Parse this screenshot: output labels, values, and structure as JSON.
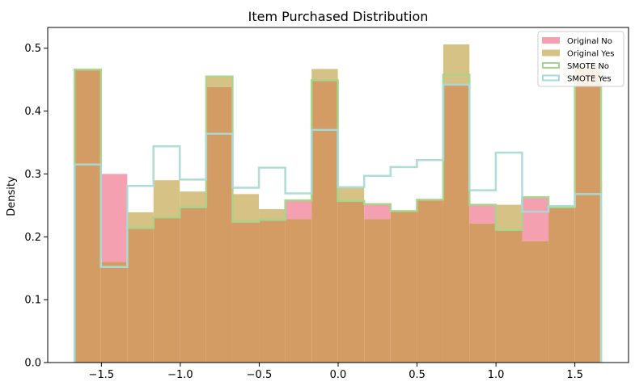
{
  "chart_data": {
    "type": "histogram",
    "title": "Item Purchased Distribution",
    "xlabel": "",
    "ylabel": "Density",
    "xlim": [
      -1.84,
      1.84
    ],
    "ylim": [
      0,
      0.533
    ],
    "grid": false,
    "legend_placement": "top-right",
    "x_ticks": [
      -1.5,
      -1.0,
      -0.5,
      0.0,
      0.5,
      1.0,
      1.5
    ],
    "x_tick_labels": [
      "−1.5",
      "−1.0",
      "−0.5",
      "0.0",
      "0.5",
      "1.0",
      "1.5"
    ],
    "y_ticks": [
      0.0,
      0.1,
      0.2,
      0.3,
      0.4,
      0.5
    ],
    "y_tick_labels": [
      "0.0",
      "0.1",
      "0.2",
      "0.3",
      "0.4",
      "0.5"
    ],
    "bin_edges": [
      -1.67,
      -1.503,
      -1.336,
      -1.17,
      -1.003,
      -0.836,
      -0.669,
      -0.502,
      -0.335,
      -0.168,
      -0.002,
      0.165,
      0.332,
      0.499,
      0.666,
      0.832,
      0.999,
      1.166,
      1.333,
      1.5,
      1.666
    ],
    "series": [
      {
        "name": "Original No",
        "style": "filled",
        "color": "#f4a0b0",
        "values": [
          0.466,
          0.3,
          0.214,
          0.231,
          0.247,
          0.438,
          0.224,
          0.227,
          0.258,
          0.449,
          0.257,
          0.252,
          0.241,
          0.259,
          0.442,
          0.251,
          0.211,
          0.263,
          0.247,
          0.47
        ]
      },
      {
        "name": "Original Yes",
        "style": "filled",
        "color": "#d6c285",
        "values": [
          0.466,
          0.16,
          0.239,
          0.29,
          0.272,
          0.455,
          0.268,
          0.244,
          0.228,
          0.467,
          0.278,
          0.228,
          0.241,
          0.258,
          0.506,
          0.221,
          0.251,
          0.193,
          0.247,
          0.47
        ]
      },
      {
        "name": "SMOTE No",
        "style": "step",
        "color": "#a5d58c",
        "values": [
          0.466,
          0.152,
          0.214,
          0.231,
          0.247,
          0.455,
          0.224,
          0.227,
          0.258,
          0.449,
          0.257,
          0.252,
          0.241,
          0.259,
          0.458,
          0.251,
          0.211,
          0.263,
          0.247,
          0.47
        ]
      },
      {
        "name": "SMOTE Yes",
        "style": "step",
        "color": "#a9dad7",
        "values": [
          0.315,
          0.152,
          0.281,
          0.344,
          0.291,
          0.364,
          0.278,
          0.31,
          0.269,
          0.37,
          0.279,
          0.297,
          0.311,
          0.322,
          0.442,
          0.274,
          0.334,
          0.24,
          0.249,
          0.268
        ]
      }
    ],
    "overlap_color": "#d49c65"
  }
}
